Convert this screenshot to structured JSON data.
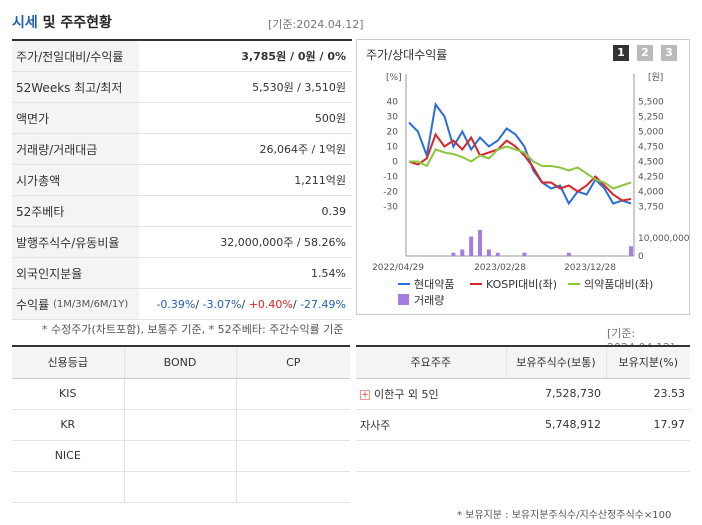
{
  "header": {
    "title_part1": "시세",
    "title_part2": "및 주주현황",
    "date": "[기준:2024.04.12]"
  },
  "price_rows": [
    {
      "label": "주가/전일대비/수익률",
      "value": "3,785원 / 0원 / 0%"
    },
    {
      "label": "52Weeks 최고/최저",
      "value": "5,530원 / 3,510원"
    },
    {
      "label": "액면가",
      "value": "500원"
    },
    {
      "label": "거래량/거래대금",
      "value": "26,064주 / 1억원"
    },
    {
      "label": "시가총액",
      "value": "1,211억원"
    },
    {
      "label": "52주베타",
      "value": "0.39"
    },
    {
      "label": "발행주식수/유동비율",
      "value": "32,000,000주 / 58.26%"
    },
    {
      "label": "외국인지분율",
      "value": "1.54%"
    }
  ],
  "returns": {
    "label": "수익률",
    "sub": "(1M/3M/6M/1Y)",
    "v1": "-0.39%",
    "v2": "-3.07%",
    "v3": "+0.40%",
    "v4": "-27.49%"
  },
  "footnote": "* 수정주가(차트포함), 보통주 기준, * 52주베타: 주간수익률 기준",
  "chart": {
    "title": "주가/상대수익률",
    "tabs": [
      "1",
      "2",
      "3"
    ],
    "left_unit": "[%]",
    "right_unit": "[원]",
    "left_ticks": [
      "40",
      "30",
      "20",
      "10",
      "0",
      "-10",
      "-20",
      "-30"
    ],
    "right_ticks": [
      "5,500",
      "5,250",
      "5,000",
      "4,750",
      "4,500",
      "4,250",
      "4,000",
      "3,750"
    ],
    "vol_tick": "10,000,000",
    "vol_zero": "0",
    "x_ticks": [
      "2022/04/29",
      "2023/02/28",
      "2023/12/28"
    ],
    "legend": [
      "현대약품",
      "KOSPI대비(좌)",
      "의약품대비(좌)",
      "거래량"
    ],
    "colors": {
      "stock": "#2a6fd6",
      "kospi": "#d9262c",
      "sector": "#8cc63f",
      "volume": "#a37de0"
    }
  },
  "chart_data": {
    "type": "line",
    "series": [
      {
        "name": "현대약품",
        "values": [
          26,
          20,
          4,
          38,
          30,
          10,
          20,
          8,
          16,
          10,
          14,
          22,
          18,
          10,
          -6,
          -14,
          -18,
          -16,
          -28,
          -20,
          -22,
          -12,
          -18,
          -28,
          -26,
          -28
        ]
      },
      {
        "name": "KOSPI대비(좌)",
        "values": [
          0,
          -2,
          2,
          18,
          10,
          14,
          8,
          16,
          4,
          6,
          8,
          14,
          10,
          4,
          -4,
          -14,
          -14,
          -18,
          -16,
          -20,
          -16,
          -10,
          -16,
          -22,
          -26,
          -25
        ]
      },
      {
        "name": "의약품대비(좌)",
        "values": [
          0,
          0,
          -3,
          8,
          6,
          5,
          3,
          0,
          4,
          2,
          8,
          10,
          8,
          6,
          0,
          -3,
          -3,
          -4,
          -6,
          -4,
          -8,
          -12,
          -14,
          -18,
          -16,
          -14
        ]
      }
    ],
    "volume": [
      0,
      0,
      0,
      0,
      0,
      1,
      2,
      6,
      8,
      2,
      1,
      0,
      0,
      1,
      0,
      0,
      0,
      0,
      1,
      0,
      0,
      0,
      0,
      0,
      0,
      3
    ],
    "ylim": [
      -35,
      45
    ]
  },
  "date_r": "[기준: 2024.04.12]",
  "credit": {
    "headers": [
      "신용등급",
      "BOND",
      "CP"
    ],
    "rows": [
      [
        "KIS",
        "",
        ""
      ],
      [
        "KR",
        "",
        ""
      ],
      [
        "NICE",
        "",
        ""
      ],
      [
        "",
        "",
        ""
      ]
    ]
  },
  "share": {
    "headers": [
      "주요주주",
      "보유주식수(보통)",
      "보유지분(%)"
    ],
    "rows": [
      {
        "name": "이한구 외 5인",
        "shares": "7,528,730",
        "pct": "23.53"
      },
      {
        "name": "자사주",
        "shares": "5,748,912",
        "pct": "17.97"
      },
      {
        "name": "",
        "shares": "",
        "pct": ""
      }
    ]
  },
  "footnote2": "* 보유지분 : 보유지분주식수/지수산정주식수×100"
}
